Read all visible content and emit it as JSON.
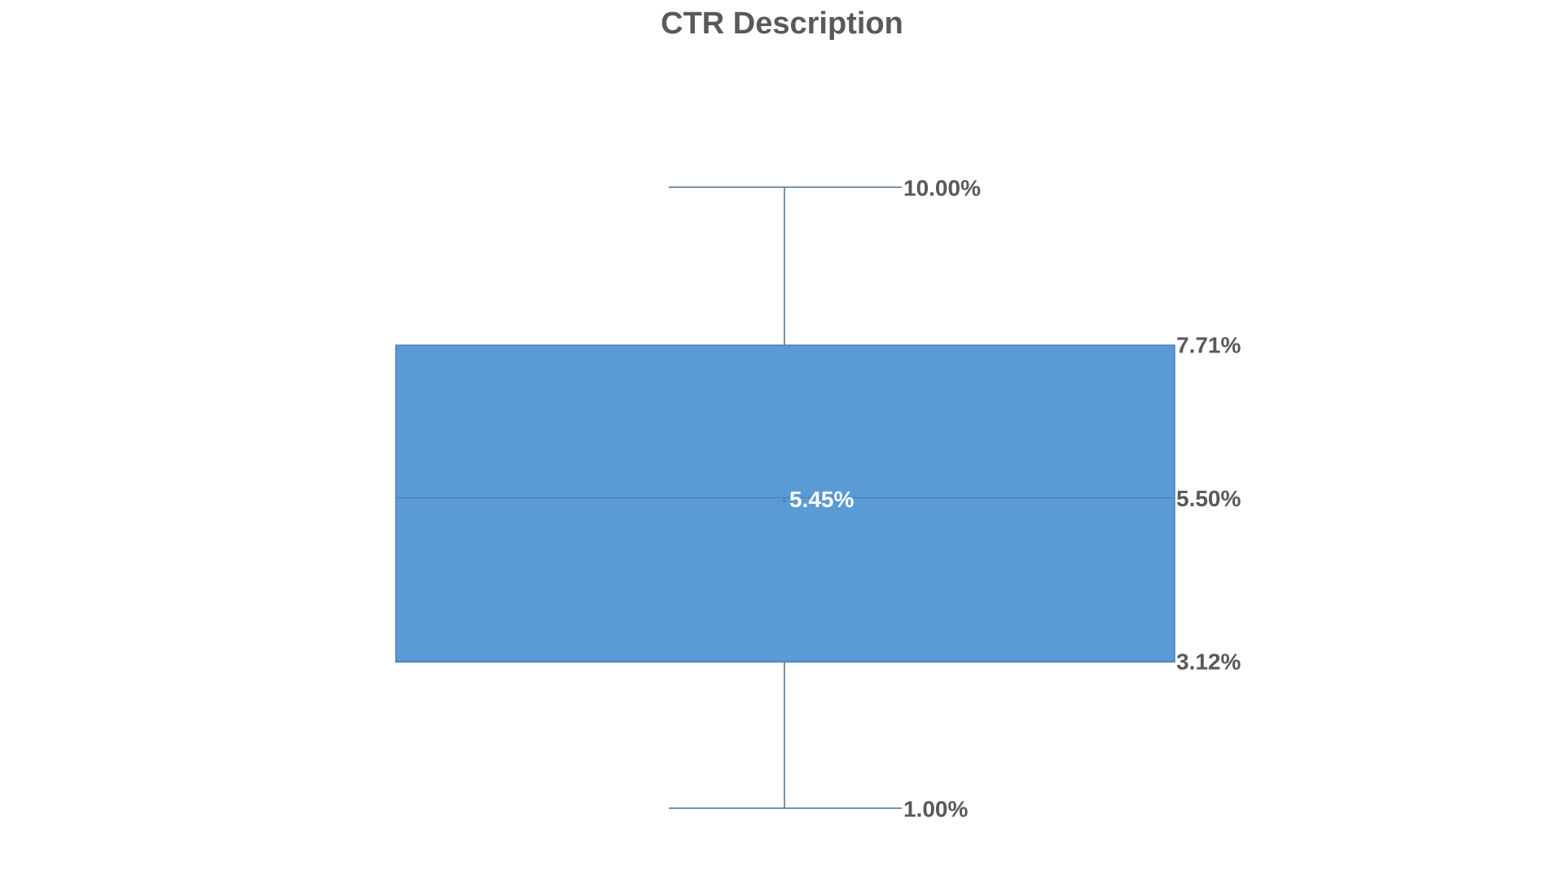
{
  "chart_data": {
    "type": "boxplot",
    "title": "CTR Description",
    "xlabel": "",
    "ylabel": "",
    "unit": "%",
    "min": 1.0,
    "q1": 3.12,
    "median": 5.5,
    "mean": 5.45,
    "q3": 7.71,
    "max": 10.0,
    "labels": {
      "max": "10.00%",
      "q3": "7.71%",
      "median": "5.50%",
      "mean": "5.45%",
      "q1": "3.12%",
      "min": "1.00%"
    },
    "ylim": [
      1.0,
      10.0
    ],
    "grid": false,
    "legend": "none",
    "colors": {
      "box_fill": "#5B9BD5",
      "box_stroke": "#4A7FB5",
      "whisker": "#4F6F8F",
      "label_text": "#595959",
      "mean_label_text": "#FFFFFF",
      "title_text": "#595959"
    }
  }
}
